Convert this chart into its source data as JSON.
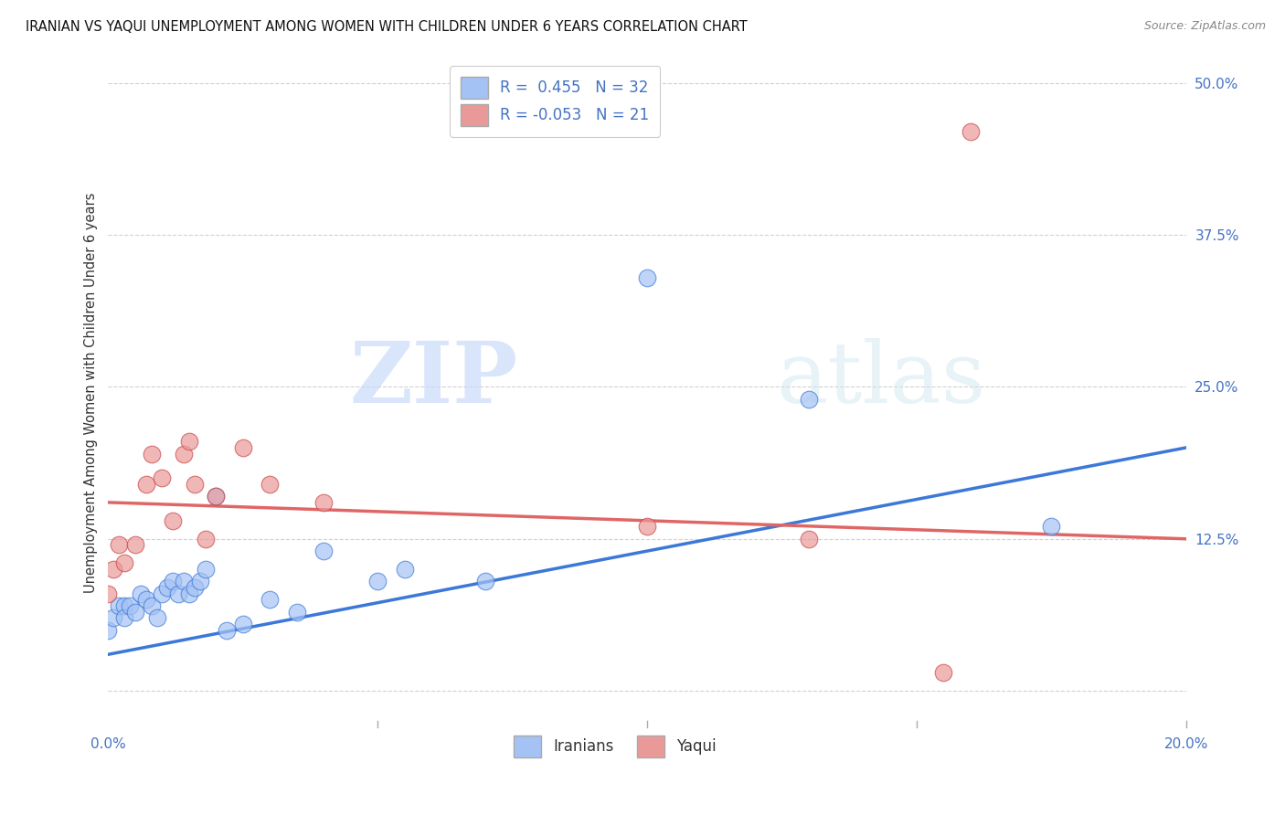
{
  "title": "IRANIAN VS YAQUI UNEMPLOYMENT AMONG WOMEN WITH CHILDREN UNDER 6 YEARS CORRELATION CHART",
  "source": "Source: ZipAtlas.com",
  "ylabel": "Unemployment Among Women with Children Under 6 years",
  "xlim": [
    0.0,
    0.2
  ],
  "ylim": [
    -0.03,
    0.52
  ],
  "xticks": [
    0.0,
    0.05,
    0.1,
    0.15,
    0.2
  ],
  "xticklabels": [
    "0.0%",
    "",
    "",
    "",
    "20.0%"
  ],
  "yticks": [
    0.0,
    0.125,
    0.25,
    0.375,
    0.5
  ],
  "yticklabels": [
    "",
    "12.5%",
    "25.0%",
    "37.5%",
    "50.0%"
  ],
  "iranians_r": 0.455,
  "iranians_n": 32,
  "yaqui_r": -0.053,
  "yaqui_n": 21,
  "iranian_color": "#a4c2f4",
  "yaqui_color": "#ea9999",
  "iranian_line_color": "#3c78d8",
  "yaqui_line_color": "#e06666",
  "watermark_zip": "ZIP",
  "watermark_atlas": "atlas",
  "background_color": "#ffffff",
  "iranians_x": [
    0.0,
    0.001,
    0.002,
    0.003,
    0.003,
    0.004,
    0.005,
    0.006,
    0.007,
    0.008,
    0.009,
    0.01,
    0.011,
    0.012,
    0.013,
    0.014,
    0.015,
    0.016,
    0.017,
    0.018,
    0.02,
    0.022,
    0.025,
    0.03,
    0.035,
    0.04,
    0.05,
    0.055,
    0.07,
    0.1,
    0.13,
    0.175
  ],
  "iranians_y": [
    0.05,
    0.06,
    0.07,
    0.07,
    0.06,
    0.07,
    0.065,
    0.08,
    0.075,
    0.07,
    0.06,
    0.08,
    0.085,
    0.09,
    0.08,
    0.09,
    0.08,
    0.085,
    0.09,
    0.1,
    0.16,
    0.05,
    0.055,
    0.075,
    0.065,
    0.115,
    0.09,
    0.1,
    0.09,
    0.34,
    0.24,
    0.135
  ],
  "yaqui_x": [
    0.0,
    0.001,
    0.002,
    0.003,
    0.005,
    0.007,
    0.008,
    0.01,
    0.012,
    0.014,
    0.015,
    0.016,
    0.018,
    0.02,
    0.025,
    0.03,
    0.04,
    0.1,
    0.13,
    0.155,
    0.16
  ],
  "yaqui_y": [
    0.08,
    0.1,
    0.12,
    0.105,
    0.12,
    0.17,
    0.195,
    0.175,
    0.14,
    0.195,
    0.205,
    0.17,
    0.125,
    0.16,
    0.2,
    0.17,
    0.155,
    0.135,
    0.125,
    0.015,
    0.46
  ],
  "iranian_trendline_x": [
    0.0,
    0.2
  ],
  "iranian_trendline_y": [
    0.03,
    0.2
  ],
  "yaqui_trendline_x": [
    0.0,
    0.2
  ],
  "yaqui_trendline_y": [
    0.155,
    0.125
  ]
}
